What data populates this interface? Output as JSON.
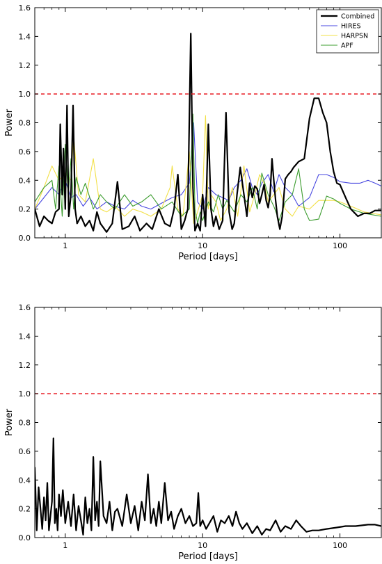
{
  "chart_data": [
    {
      "type": "line",
      "xlabel": "Period [days]",
      "ylabel": "Power",
      "xscale": "log",
      "xlim": [
        0.6,
        200
      ],
      "ylim": [
        0,
        1.6
      ],
      "grid": false,
      "legend_position": "top-right",
      "x_tick_labels": [
        "1",
        "10",
        "100"
      ],
      "y_tick_labels": [
        "0.0",
        "0.2",
        "0.4",
        "0.6",
        "0.8",
        "1.0",
        "1.2",
        "1.4",
        "1.6"
      ],
      "threshold": {
        "y": 1.0,
        "color": "#e8141c",
        "style": "dashed"
      },
      "series": [
        {
          "name": "Combined",
          "color": "#000000",
          "width": 2.2,
          "x": [
            0.6,
            0.65,
            0.7,
            0.75,
            0.8,
            0.85,
            0.9,
            0.92,
            0.95,
            0.97,
            1.0,
            1.03,
            1.06,
            1.1,
            1.14,
            1.18,
            1.22,
            1.3,
            1.4,
            1.5,
            1.6,
            1.7,
            1.8,
            2.0,
            2.2,
            2.4,
            2.6,
            2.9,
            3.2,
            3.5,
            3.9,
            4.3,
            4.8,
            5.3,
            5.8,
            6.2,
            6.6,
            7.0,
            7.4,
            7.8,
            8.2,
            8.5,
            8.8,
            9.2,
            9.6,
            10.0,
            10.5,
            11.0,
            11.5,
            12.0,
            12.5,
            13.2,
            14.0,
            14.8,
            15.6,
            16.4,
            17.0,
            17.8,
            18.8,
            20.0,
            21.0,
            22.0,
            23.0,
            24.0,
            25.0,
            26.0,
            27.0,
            28.0,
            29.0,
            30.0,
            31.0,
            32.0,
            33.0,
            34.0,
            35.0,
            36.5,
            38.0,
            40.0,
            42.0,
            44.0,
            46.0,
            50.0,
            55.0,
            60.0,
            65.0,
            70.0,
            75.0,
            80.0,
            85.0,
            90.0,
            95.0,
            100.0,
            110.0,
            120.0,
            135.0,
            150.0,
            165.0,
            180.0,
            200.0
          ],
          "y": [
            0.2,
            0.08,
            0.15,
            0.12,
            0.1,
            0.18,
            0.2,
            0.79,
            0.3,
            0.62,
            0.2,
            0.92,
            0.15,
            0.3,
            0.92,
            0.2,
            0.1,
            0.15,
            0.08,
            0.12,
            0.05,
            0.18,
            0.1,
            0.04,
            0.1,
            0.39,
            0.06,
            0.08,
            0.15,
            0.05,
            0.1,
            0.06,
            0.2,
            0.1,
            0.08,
            0.2,
            0.44,
            0.06,
            0.12,
            0.2,
            1.42,
            0.35,
            0.05,
            0.1,
            0.05,
            0.3,
            0.08,
            0.79,
            0.2,
            0.08,
            0.15,
            0.06,
            0.12,
            0.87,
            0.18,
            0.06,
            0.1,
            0.3,
            0.49,
            0.3,
            0.15,
            0.38,
            0.28,
            0.36,
            0.34,
            0.24,
            0.3,
            0.37,
            0.26,
            0.21,
            0.3,
            0.55,
            0.4,
            0.26,
            0.15,
            0.06,
            0.15,
            0.41,
            0.44,
            0.46,
            0.49,
            0.53,
            0.55,
            0.83,
            0.97,
            0.97,
            0.87,
            0.8,
            0.6,
            0.46,
            0.38,
            0.37,
            0.28,
            0.2,
            0.15,
            0.17,
            0.17,
            0.19,
            0.19
          ]
        },
        {
          "name": "HIRES",
          "color": "#4848e0",
          "width": 1.1,
          "x": [
            0.6,
            0.7,
            0.8,
            0.9,
            1.0,
            1.1,
            1.2,
            1.35,
            1.5,
            1.7,
            2.0,
            2.3,
            2.7,
            3.1,
            3.6,
            4.2,
            5.0,
            6.0,
            7.0,
            8.0,
            8.6,
            9.2,
            10.0,
            11.0,
            12.5,
            14.0,
            15.5,
            17.0,
            19.0,
            21.0,
            23.0,
            25.0,
            27.0,
            30.0,
            33.0,
            36.0,
            40.0,
            45.0,
            50.0,
            60.0,
            70.0,
            80.0,
            90.0,
            100.0,
            120.0,
            140.0,
            160.0,
            180.0,
            200.0
          ],
          "y": [
            0.2,
            0.28,
            0.35,
            0.3,
            0.4,
            0.28,
            0.3,
            0.22,
            0.28,
            0.2,
            0.25,
            0.22,
            0.2,
            0.26,
            0.22,
            0.2,
            0.24,
            0.28,
            0.3,
            0.38,
            0.8,
            0.25,
            0.2,
            0.35,
            0.3,
            0.28,
            0.26,
            0.35,
            0.4,
            0.48,
            0.35,
            0.3,
            0.38,
            0.44,
            0.32,
            0.44,
            0.35,
            0.3,
            0.22,
            0.28,
            0.44,
            0.44,
            0.42,
            0.39,
            0.38,
            0.38,
            0.4,
            0.38,
            0.36
          ]
        },
        {
          "name": "HARPSN",
          "color": "#f2e046",
          "width": 1.1,
          "x": [
            0.6,
            0.7,
            0.8,
            0.9,
            1.0,
            1.1,
            1.15,
            1.25,
            1.4,
            1.6,
            1.8,
            2.0,
            2.3,
            2.7,
            3.1,
            3.6,
            4.2,
            5.0,
            5.8,
            6.0,
            6.6,
            7.2,
            8.0,
            8.6,
            9.2,
            10.0,
            10.5,
            11.0,
            11.5,
            12.5,
            13.5,
            15.0,
            16.5,
            18.0,
            20.0,
            22.0,
            24.0,
            26.0,
            28.0,
            30.0,
            33.0,
            36.0,
            40.0,
            45.0,
            50.0,
            60.0,
            70.0,
            80.0,
            90.0,
            100.0,
            120.0,
            150.0,
            200.0
          ],
          "y": [
            0.2,
            0.35,
            0.5,
            0.4,
            0.45,
            0.4,
            0.71,
            0.3,
            0.25,
            0.55,
            0.2,
            0.18,
            0.22,
            0.15,
            0.2,
            0.18,
            0.15,
            0.2,
            0.35,
            0.5,
            0.2,
            0.15,
            0.6,
            0.1,
            0.18,
            0.3,
            0.85,
            0.2,
            0.3,
            0.25,
            0.12,
            0.2,
            0.35,
            0.15,
            0.5,
            0.18,
            0.3,
            0.44,
            0.38,
            0.25,
            0.3,
            0.35,
            0.2,
            0.15,
            0.22,
            0.2,
            0.26,
            0.26,
            0.26,
            0.25,
            0.22,
            0.18,
            0.16
          ]
        },
        {
          "name": "APF",
          "color": "#3b9c2e",
          "width": 1.1,
          "x": [
            0.6,
            0.7,
            0.8,
            0.85,
            0.9,
            0.95,
            1.0,
            1.05,
            1.1,
            1.15,
            1.2,
            1.3,
            1.4,
            1.6,
            1.8,
            2.0,
            2.3,
            2.7,
            3.1,
            3.6,
            4.2,
            5.0,
            6.0,
            7.0,
            8.0,
            8.5,
            8.8,
            9.2,
            9.6,
            10.0,
            11.0,
            12.0,
            13.0,
            14.0,
            15.0,
            17.0,
            19.0,
            21.0,
            23.0,
            25.0,
            27.0,
            30.0,
            33.0,
            36.0,
            40.0,
            45.0,
            50.0,
            55.0,
            60.0,
            70.0,
            80.0,
            90.0,
            100.0,
            120.0,
            150.0,
            200.0
          ],
          "y": [
            0.25,
            0.35,
            0.4,
            0.2,
            0.5,
            0.15,
            0.65,
            0.3,
            0.55,
            0.2,
            0.42,
            0.3,
            0.38,
            0.2,
            0.3,
            0.25,
            0.2,
            0.3,
            0.22,
            0.25,
            0.3,
            0.2,
            0.25,
            0.15,
            0.2,
            0.86,
            0.2,
            0.1,
            0.18,
            0.12,
            0.25,
            0.18,
            0.3,
            0.2,
            0.26,
            0.18,
            0.3,
            0.25,
            0.35,
            0.2,
            0.45,
            0.3,
            0.22,
            0.12,
            0.25,
            0.3,
            0.48,
            0.2,
            0.12,
            0.13,
            0.29,
            0.27,
            0.24,
            0.2,
            0.17,
            0.15
          ]
        }
      ]
    },
    {
      "type": "line",
      "xlabel": "Period [days]",
      "ylabel": "Power",
      "xscale": "log",
      "xlim": [
        0.6,
        200
      ],
      "ylim": [
        0,
        1.6
      ],
      "grid": false,
      "x_tick_labels": [
        "1",
        "10",
        "100"
      ],
      "y_tick_labels": [
        "0.0",
        "0.2",
        "0.4",
        "0.6",
        "0.8",
        "1.0",
        "1.2",
        "1.4",
        "1.6"
      ],
      "threshold": {
        "y": 1.0,
        "color": "#e8141c",
        "style": "dashed"
      },
      "series": [
        {
          "color": "#000000",
          "width": 2.2,
          "x": [
            0.6,
            0.62,
            0.64,
            0.66,
            0.68,
            0.7,
            0.72,
            0.74,
            0.76,
            0.78,
            0.8,
            0.82,
            0.84,
            0.86,
            0.88,
            0.9,
            0.93,
            0.96,
            1.0,
            1.05,
            1.1,
            1.15,
            1.2,
            1.25,
            1.3,
            1.35,
            1.4,
            1.45,
            1.5,
            1.55,
            1.6,
            1.65,
            1.7,
            1.75,
            1.8,
            1.9,
            2.0,
            2.1,
            2.2,
            2.3,
            2.4,
            2.6,
            2.8,
            3.0,
            3.2,
            3.4,
            3.6,
            3.8,
            4.0,
            4.2,
            4.4,
            4.6,
            4.8,
            5.0,
            5.3,
            5.6,
            5.9,
            6.2,
            6.6,
            7.0,
            7.5,
            8.0,
            8.5,
            9.0,
            9.3,
            9.6,
            10.0,
            10.6,
            11.2,
            12.0,
            12.8,
            13.6,
            14.5,
            15.5,
            16.5,
            17.5,
            18.5,
            19.5,
            21.0,
            23.0,
            25.0,
            27.0,
            29.0,
            31.0,
            34.0,
            37.0,
            40.0,
            44.0,
            48.0,
            52.0,
            57.0,
            63.0,
            70.0,
            80.0,
            95.0,
            110.0,
            130.0,
            160.0,
            180.0,
            200.0
          ],
          "y": [
            0.49,
            0.05,
            0.35,
            0.2,
            0.06,
            0.28,
            0.12,
            0.38,
            0.05,
            0.15,
            0.25,
            0.69,
            0.1,
            0.2,
            0.05,
            0.3,
            0.15,
            0.33,
            0.1,
            0.25,
            0.08,
            0.3,
            0.05,
            0.22,
            0.12,
            0.02,
            0.28,
            0.1,
            0.2,
            0.05,
            0.56,
            0.12,
            0.25,
            0.08,
            0.53,
            0.15,
            0.1,
            0.25,
            0.05,
            0.18,
            0.2,
            0.08,
            0.3,
            0.1,
            0.22,
            0.05,
            0.25,
            0.12,
            0.44,
            0.1,
            0.2,
            0.08,
            0.25,
            0.1,
            0.38,
            0.12,
            0.18,
            0.06,
            0.15,
            0.2,
            0.1,
            0.15,
            0.08,
            0.1,
            0.31,
            0.08,
            0.12,
            0.06,
            0.1,
            0.15,
            0.04,
            0.12,
            0.1,
            0.15,
            0.08,
            0.18,
            0.1,
            0.06,
            0.1,
            0.03,
            0.08,
            0.02,
            0.06,
            0.05,
            0.12,
            0.04,
            0.08,
            0.06,
            0.12,
            0.08,
            0.04,
            0.05,
            0.05,
            0.06,
            0.07,
            0.08,
            0.08,
            0.09,
            0.09,
            0.08
          ]
        }
      ]
    }
  ]
}
